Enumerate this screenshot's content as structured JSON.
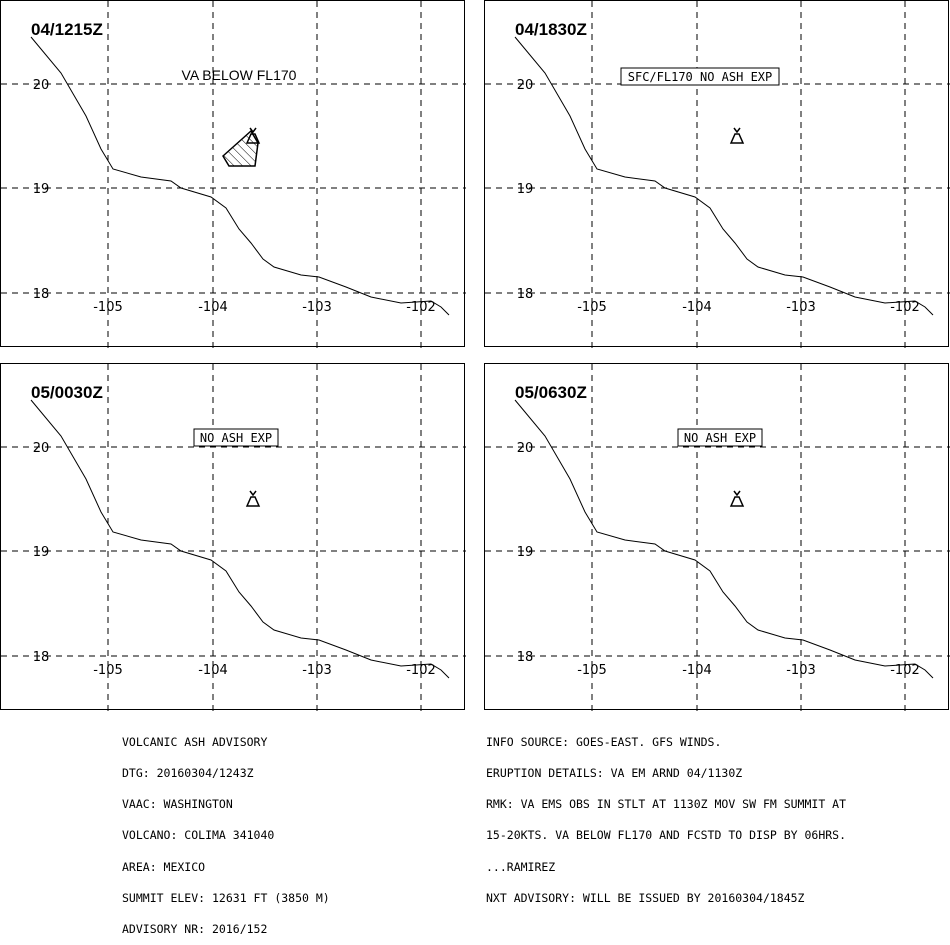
{
  "map": {
    "lon_ticks": [
      "-105",
      "-104",
      "-103",
      "-102"
    ],
    "lat_ticks": [
      "20",
      "19",
      "18"
    ]
  },
  "panels": [
    {
      "time_label": "04/1215Z",
      "note": "VA BELOW FL170",
      "note_boxed": false,
      "ash_area": true
    },
    {
      "time_label": "04/1830Z",
      "note": "SFC/FL170 NO ASH EXP",
      "note_boxed": true,
      "ash_area": false
    },
    {
      "time_label": "05/0030Z",
      "note": "NO ASH EXP",
      "note_boxed": true,
      "ash_area": false
    },
    {
      "time_label": "05/0630Z",
      "note": "NO ASH EXP",
      "note_boxed": true,
      "ash_area": false
    }
  ],
  "advisory_left": [
    "VOLCANIC ASH ADVISORY",
    "DTG: 20160304/1243Z",
    "VAAC: WASHINGTON",
    "VOLCANO: COLIMA 341040",
    "AREA: MEXICO",
    "SUMMIT ELEV: 12631 FT (3850 M)",
    "ADVISORY NR: 2016/152"
  ],
  "advisory_right": [
    "INFO SOURCE: GOES-EAST. GFS WINDS.",
    "ERUPTION DETAILS: VA EM ARND 04/1130Z",
    "RMK: VA EMS OBS IN STLT AT 1130Z MOV SW FM SUMMIT AT",
    "15-20KTS. VA BELOW FL170 AND FCSTD TO DISP BY 06HRS.",
    "...RAMIREZ",
    "NXT ADVISORY: WILL BE ISSUED BY 20160304/1845Z"
  ]
}
